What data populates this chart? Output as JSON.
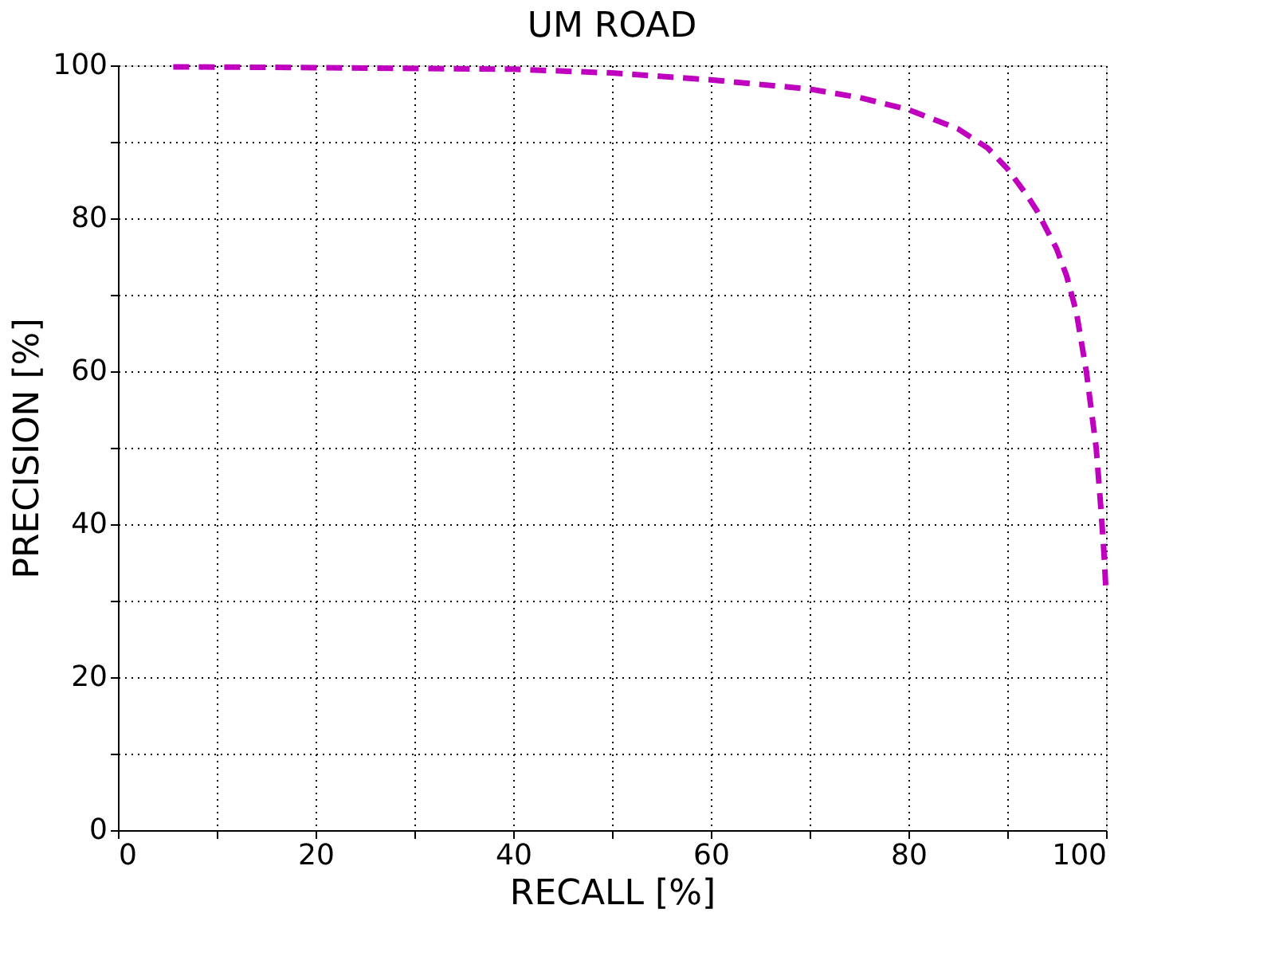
{
  "chart_data": {
    "type": "line",
    "title": "UM ROAD",
    "xlabel": "RECALL [%]",
    "ylabel": "PRECISION [%]",
    "x": [
      5.6,
      20,
      40,
      50,
      60,
      70,
      75,
      80,
      85,
      88,
      90,
      92,
      93,
      95,
      96,
      97,
      98,
      99,
      99.5,
      99.8,
      100
    ],
    "series": [
      {
        "color": "#bf00bf",
        "values": [
          99.8,
          99.7,
          99.5,
          99.0,
          98.1,
          96.9,
          95.8,
          94.2,
          91.7,
          89.2,
          86.5,
          83,
          81,
          76,
          72.5,
          67.7,
          60,
          50,
          41.7,
          36,
          31
        ]
      }
    ],
    "xlim": [
      0,
      100
    ],
    "ylim": [
      0,
      100
    ],
    "xticks": [
      0,
      {
        "value": 10,
        "label": null
      },
      20,
      {
        "value": 30,
        "label": null
      },
      40,
      {
        "value": 50,
        "label": null
      },
      60,
      {
        "value": 70,
        "label": null
      },
      80,
      {
        "value": 90,
        "label": null
      },
      100
    ],
    "yticks": [
      0,
      {
        "value": 10,
        "label": null
      },
      20,
      {
        "value": 30,
        "label": null
      },
      40,
      {
        "value": 50,
        "label": null
      },
      60,
      {
        "value": 70,
        "label": null
      },
      80,
      {
        "value": 90,
        "label": null
      },
      100
    ],
    "grid": true,
    "line_style": "dashed",
    "marker": "none"
  }
}
